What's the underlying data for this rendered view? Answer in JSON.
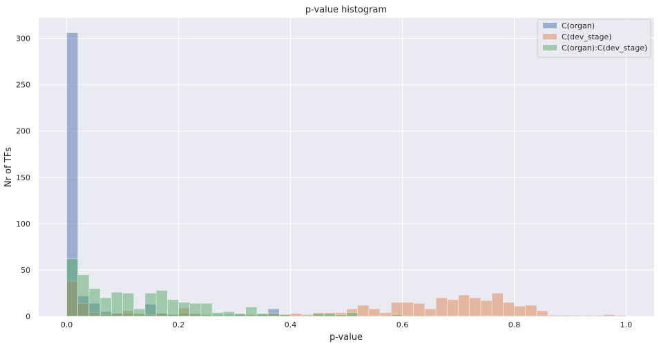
{
  "chart_data": {
    "type": "histogram",
    "title": "p-value histogram",
    "xlabel": "p-value",
    "ylabel": "Nr of TFs",
    "xlim": [
      -0.05,
      1.05
    ],
    "ylim": [
      0,
      322
    ],
    "xticks": [
      0.0,
      0.2,
      0.4,
      0.6,
      0.8,
      1.0
    ],
    "xtick_labels": [
      "0.0",
      "0.2",
      "0.4",
      "0.6",
      "0.8",
      "1.0"
    ],
    "yticks": [
      0,
      50,
      100,
      150,
      200,
      250,
      300
    ],
    "ytick_labels": [
      "0",
      "50",
      "100",
      "150",
      "200",
      "250",
      "300"
    ],
    "grid": true,
    "legend_position": "top-right",
    "bin_start": 0.0,
    "bin_width": 0.02,
    "series": [
      {
        "name": "C(organ)",
        "color": "#4c72b0",
        "alpha": 0.5,
        "values": [
          306,
          22,
          14,
          5,
          3,
          3,
          2,
          13,
          3,
          2,
          3,
          2,
          1,
          2,
          2,
          2,
          1,
          2,
          8,
          1,
          1,
          1,
          1,
          1,
          1,
          1,
          1,
          0,
          0,
          0,
          0,
          1,
          0,
          0,
          0,
          0,
          0,
          0,
          0,
          0,
          0,
          0,
          0,
          0,
          0,
          0,
          0,
          0,
          0,
          0
        ]
      },
      {
        "name": "C(dev_stage)",
        "color": "#dd8452",
        "alpha": 0.5,
        "values": [
          38,
          14,
          4,
          2,
          3,
          6,
          3,
          2,
          3,
          2,
          9,
          3,
          2,
          1,
          1,
          2,
          2,
          2,
          3,
          2,
          3,
          2,
          4,
          4,
          4,
          8,
          12,
          8,
          4,
          15,
          15,
          14,
          8,
          20,
          18,
          23,
          20,
          17,
          25,
          15,
          11,
          12,
          6,
          1,
          1,
          1,
          1,
          1,
          2,
          1
        ]
      },
      {
        "name": "C(organ):C(dev_stage)",
        "color": "#55a868",
        "alpha": 0.5,
        "values": [
          62,
          45,
          30,
          20,
          26,
          25,
          8,
          25,
          28,
          18,
          15,
          14,
          14,
          4,
          5,
          3,
          10,
          3,
          3,
          2,
          1,
          1,
          3,
          3,
          2,
          4,
          1,
          1,
          1,
          2,
          1,
          1,
          1,
          1,
          1,
          1,
          1,
          1,
          1,
          1,
          1,
          1,
          1,
          1,
          1,
          0,
          0,
          0,
          0,
          0
        ]
      }
    ]
  }
}
